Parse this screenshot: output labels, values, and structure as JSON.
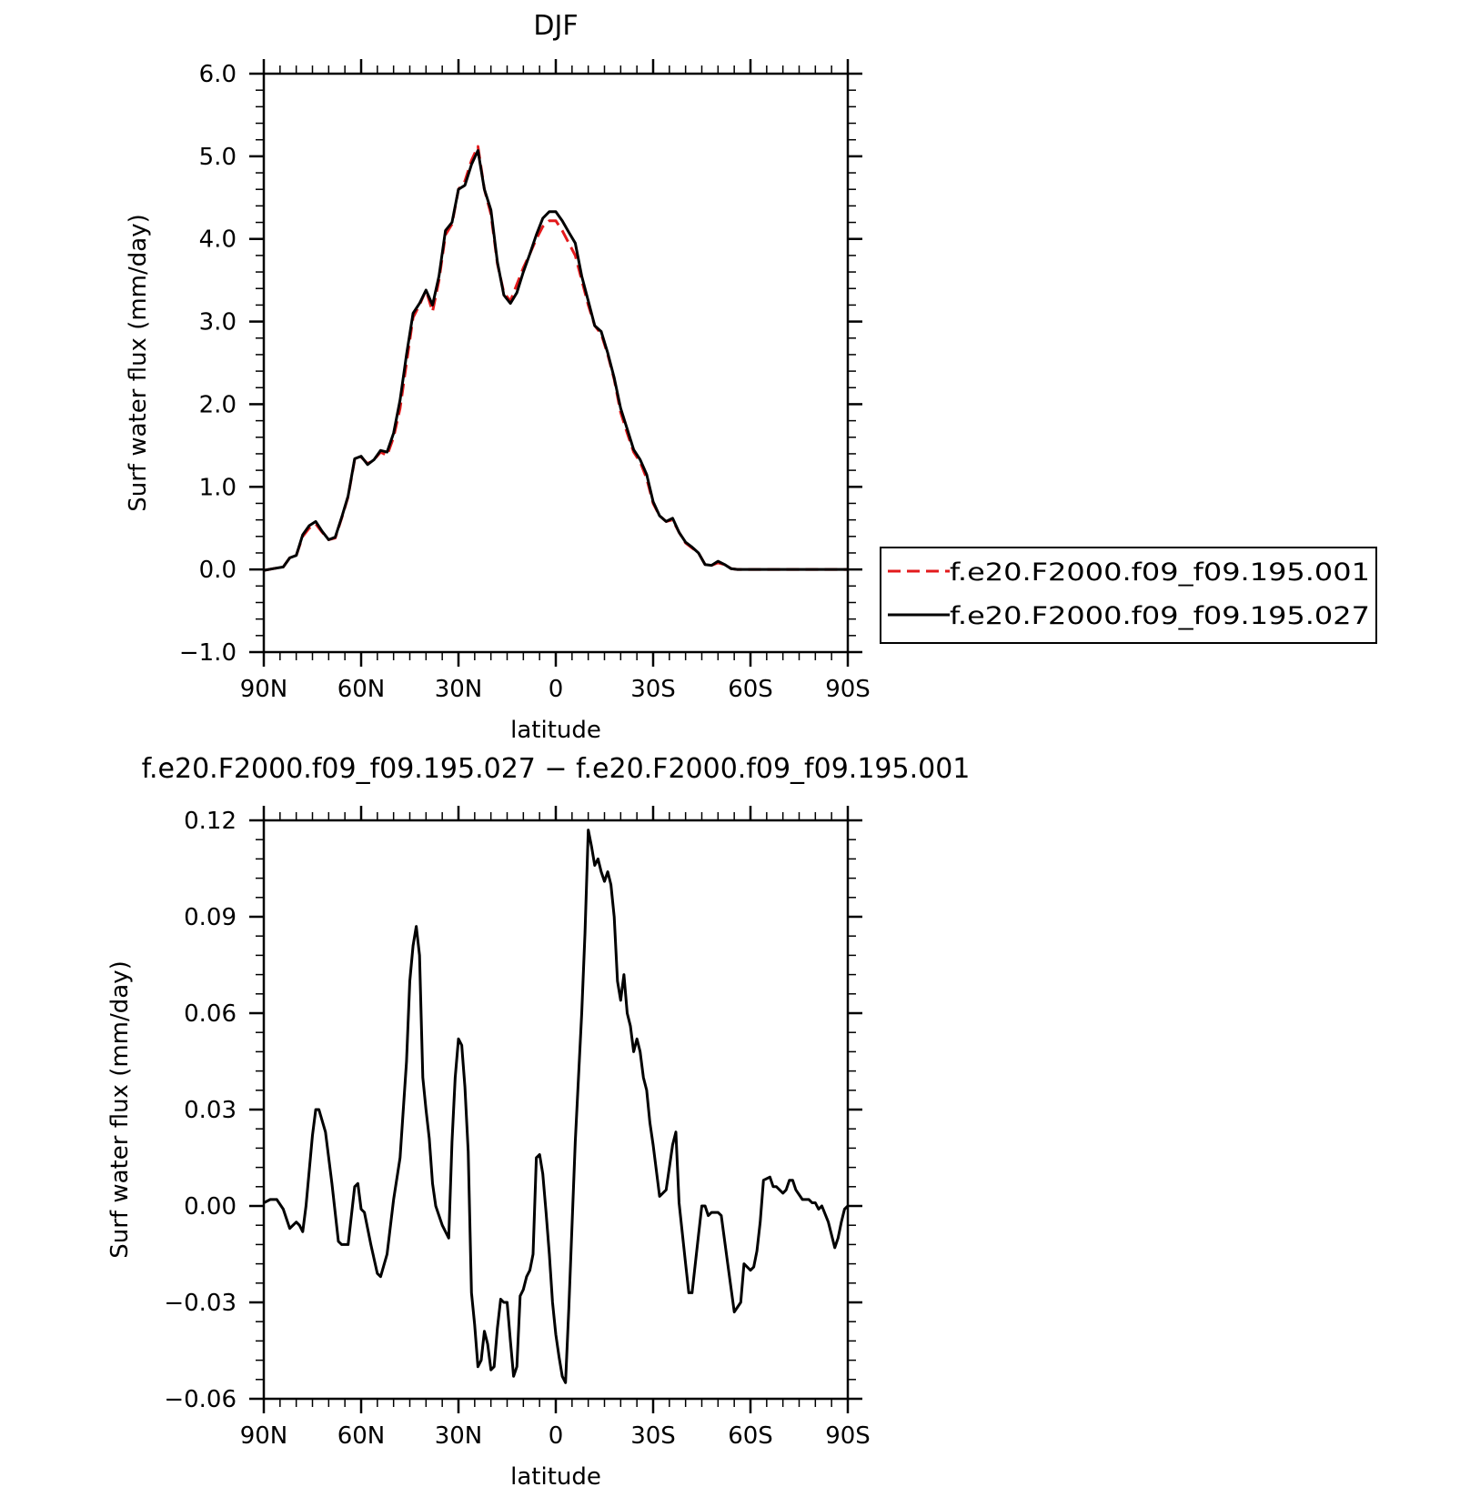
{
  "chart_data": [
    {
      "type": "line",
      "title": "DJF",
      "xlabel": "latitude",
      "ylabel": "Surf water flux (mm/day)",
      "xlim": [
        90,
        -90
      ],
      "ylim": [
        -1.0,
        6.0
      ],
      "x_ticks": [
        90,
        60,
        30,
        0,
        -30,
        -60,
        -90
      ],
      "x_tick_labels": [
        "90N",
        "60N",
        "30N",
        "0",
        "30S",
        "60S",
        "90S"
      ],
      "y_ticks": [
        -1.0,
        0.0,
        1.0,
        2.0,
        3.0,
        4.0,
        5.0,
        6.0
      ],
      "y_tick_labels": [
        "−1.0",
        "0.0",
        "1.0",
        "2.0",
        "3.0",
        "4.0",
        "5.0",
        "6.0"
      ],
      "grid": false,
      "legend_position": "right",
      "series": [
        {
          "name": "f.e20.F2000.f09_f09.195.001",
          "color": "#e31a1c",
          "style": "dashed",
          "x": [
            90,
            87,
            84,
            82,
            80,
            78,
            76,
            74,
            72,
            70,
            68,
            66,
            64,
            62,
            60,
            58,
            56,
            54,
            52,
            50,
            48,
            46,
            44,
            42,
            40,
            38,
            36,
            34,
            32,
            30,
            28,
            26,
            24,
            22,
            20,
            18,
            16,
            14,
            12,
            10,
            8,
            6,
            4,
            2,
            0,
            -2,
            -4,
            -6,
            -8,
            -10,
            -12,
            -14,
            -16,
            -18,
            -20,
            -22,
            -24,
            -26,
            -28,
            -30,
            -32,
            -34,
            -36,
            -38,
            -40,
            -42,
            -44,
            -46,
            -48,
            -50,
            -52,
            -54,
            -56,
            -58,
            -60,
            -62,
            -64,
            -66,
            -68,
            -70,
            -72,
            -74,
            -76,
            -78,
            -80,
            -82,
            -84,
            -86,
            -88,
            -90
          ],
          "y": [
            -0.01,
            0.01,
            0.03,
            0.14,
            0.17,
            0.4,
            0.5,
            0.55,
            0.45,
            0.36,
            0.38,
            0.62,
            0.88,
            1.33,
            1.36,
            1.28,
            1.33,
            1.42,
            1.38,
            1.6,
            1.95,
            2.5,
            3.05,
            3.2,
            3.38,
            3.12,
            3.5,
            4.05,
            4.18,
            4.6,
            4.7,
            4.95,
            5.12,
            4.6,
            4.3,
            3.7,
            3.35,
            3.25,
            3.45,
            3.65,
            3.82,
            4.0,
            4.15,
            4.22,
            4.22,
            4.1,
            3.95,
            3.8,
            3.5,
            3.2,
            2.95,
            2.85,
            2.6,
            2.3,
            1.9,
            1.65,
            1.42,
            1.3,
            1.1,
            0.8,
            0.65,
            0.58,
            0.6,
            0.45,
            0.32,
            0.26,
            0.2,
            0.06,
            0.05,
            0.08,
            0.06,
            0.01,
            0.0,
            0.0,
            0.0,
            0.0,
            0.0,
            0.0,
            0.0,
            0.0,
            0.0,
            0.0,
            0.0,
            0.0,
            0.0,
            0.0,
            0.0,
            0.0,
            0.0,
            0.0
          ]
        },
        {
          "name": "f.e20.F2000.f09_f09.195.027",
          "color": "#000000",
          "style": "solid",
          "x": [
            90,
            87,
            84,
            82,
            80,
            78,
            76,
            74,
            72,
            70,
            68,
            66,
            64,
            62,
            60,
            58,
            56,
            54,
            52,
            50,
            48,
            46,
            44,
            42,
            40,
            38,
            36,
            34,
            32,
            30,
            28,
            26,
            24,
            22,
            20,
            18,
            16,
            14,
            12,
            10,
            8,
            6,
            4,
            2,
            0,
            -2,
            -4,
            -6,
            -8,
            -10,
            -12,
            -14,
            -16,
            -18,
            -20,
            -22,
            -24,
            -26,
            -28,
            -30,
            -32,
            -34,
            -36,
            -38,
            -40,
            -42,
            -44,
            -46,
            -48,
            -50,
            -52,
            -54,
            -56,
            -58,
            -60,
            -62,
            -64,
            -66,
            -68,
            -70,
            -72,
            -74,
            -76,
            -78,
            -80,
            -82,
            -84,
            -86,
            -88,
            -90
          ],
          "y": [
            -0.01,
            0.01,
            0.03,
            0.14,
            0.17,
            0.42,
            0.53,
            0.58,
            0.46,
            0.36,
            0.39,
            0.63,
            0.89,
            1.34,
            1.37,
            1.27,
            1.33,
            1.44,
            1.42,
            1.65,
            2.05,
            2.6,
            3.1,
            3.22,
            3.38,
            3.2,
            3.55,
            4.1,
            4.2,
            4.6,
            4.65,
            4.9,
            5.07,
            4.6,
            4.35,
            3.72,
            3.32,
            3.22,
            3.35,
            3.6,
            3.82,
            4.05,
            4.25,
            4.33,
            4.33,
            4.22,
            4.08,
            3.95,
            3.55,
            3.25,
            2.95,
            2.88,
            2.62,
            2.32,
            1.95,
            1.7,
            1.45,
            1.33,
            1.15,
            0.82,
            0.65,
            0.58,
            0.62,
            0.45,
            0.33,
            0.27,
            0.2,
            0.06,
            0.05,
            0.1,
            0.06,
            0.01,
            0.0,
            0.0,
            0.0,
            0.0,
            0.0,
            0.0,
            0.0,
            0.0,
            0.0,
            0.0,
            0.0,
            0.0,
            0.0,
            0.0,
            0.0,
            0.0,
            0.0,
            0.0
          ]
        }
      ]
    },
    {
      "type": "line",
      "title": "f.e20.F2000.f09_f09.195.027 − f.e20.F2000.f09_f09.195.001",
      "xlabel": "latitude",
      "ylabel": "Surf water flux (mm/day)",
      "xlim": [
        90,
        -90
      ],
      "ylim": [
        -0.06,
        0.12
      ],
      "x_ticks": [
        90,
        60,
        30,
        0,
        -30,
        -60,
        -90
      ],
      "x_tick_labels": [
        "90N",
        "60N",
        "30N",
        "0",
        "30S",
        "60S",
        "90S"
      ],
      "y_ticks": [
        -0.06,
        -0.03,
        0.0,
        0.03,
        0.06,
        0.09,
        0.12
      ],
      "y_tick_labels": [
        "−0.06",
        "−0.03",
        "0.00",
        "0.03",
        "0.06",
        "0.09",
        "0.12"
      ],
      "grid": false,
      "series": [
        {
          "color": "#000000",
          "style": "solid",
          "x": [
            90,
            88,
            86,
            84,
            82,
            80,
            79,
            78,
            77,
            75,
            74,
            73,
            71,
            69,
            67,
            66,
            64,
            62,
            61,
            60,
            59,
            57,
            55,
            54,
            52,
            50,
            48,
            46,
            45,
            44,
            43,
            42,
            41,
            40,
            39,
            38,
            37,
            36,
            35,
            33,
            32,
            31,
            30,
            29,
            28,
            27,
            26,
            25,
            24,
            23,
            22,
            21,
            20,
            19,
            18,
            17,
            16,
            15,
            14,
            13,
            12,
            11,
            10,
            9,
            8,
            7,
            6,
            5,
            4,
            3,
            2,
            1,
            0,
            -1,
            -2,
            -3,
            -4,
            -6,
            -8,
            -9,
            -10,
            -11,
            -12,
            -13,
            -14,
            -15,
            -16,
            -17,
            -18,
            -19,
            -20,
            -21,
            -22,
            -23,
            -24,
            -25,
            -26,
            -27,
            -28,
            -29,
            -30,
            -32,
            -34,
            -36,
            -37,
            -38,
            -40,
            -41,
            -42,
            -44,
            -45,
            -46,
            -47,
            -48,
            -49,
            -50,
            -51,
            -53,
            -55,
            -57,
            -58,
            -60,
            -61,
            -62,
            -63,
            -64,
            -66,
            -67,
            -68,
            -70,
            -71,
            -72,
            -73,
            -74,
            -76,
            -78,
            -79,
            -80,
            -81,
            -82,
            -84,
            -86,
            -87,
            -88,
            -89,
            -90
          ],
          "y": [
            0.001,
            0.002,
            0.002,
            -0.001,
            -0.007,
            -0.005,
            -0.006,
            -0.008,
            0.0,
            0.022,
            0.03,
            0.03,
            0.023,
            0.007,
            -0.011,
            -0.012,
            -0.012,
            0.006,
            0.007,
            -0.001,
            -0.002,
            -0.012,
            -0.021,
            -0.022,
            -0.015,
            0.002,
            0.015,
            0.045,
            0.07,
            0.081,
            0.087,
            0.078,
            0.04,
            0.03,
            0.021,
            0.007,
            0.0,
            -0.003,
            -0.006,
            -0.01,
            0.02,
            0.04,
            0.052,
            0.05,
            0.037,
            0.017,
            -0.027,
            -0.037,
            -0.05,
            -0.048,
            -0.039,
            -0.043,
            -0.051,
            -0.05,
            -0.038,
            -0.029,
            -0.03,
            -0.03,
            -0.042,
            -0.053,
            -0.05,
            -0.028,
            -0.026,
            -0.022,
            -0.02,
            -0.015,
            0.015,
            0.016,
            0.01,
            -0.002,
            -0.015,
            -0.03,
            -0.04,
            -0.047,
            -0.053,
            -0.055,
            -0.032,
            0.02,
            0.06,
            0.085,
            0.117,
            0.112,
            0.106,
            0.108,
            0.104,
            0.101,
            0.104,
            0.1,
            0.09,
            0.07,
            0.064,
            0.072,
            0.06,
            0.056,
            0.048,
            0.052,
            0.048,
            0.04,
            0.036,
            0.026,
            0.019,
            0.003,
            0.005,
            0.019,
            0.023,
            0.001,
            -0.018,
            -0.027,
            -0.027,
            -0.009,
            0.0,
            0.0,
            -0.003,
            -0.002,
            -0.002,
            -0.002,
            -0.003,
            -0.018,
            -0.033,
            -0.03,
            -0.018,
            -0.02,
            -0.019,
            -0.014,
            -0.005,
            0.008,
            0.009,
            0.006,
            0.006,
            0.004,
            0.005,
            0.008,
            0.008,
            0.005,
            0.002,
            0.002,
            0.001,
            0.001,
            -0.001,
            0.0,
            -0.005,
            -0.013,
            -0.01,
            -0.005,
            -0.001,
            0.0
          ]
        }
      ]
    }
  ]
}
